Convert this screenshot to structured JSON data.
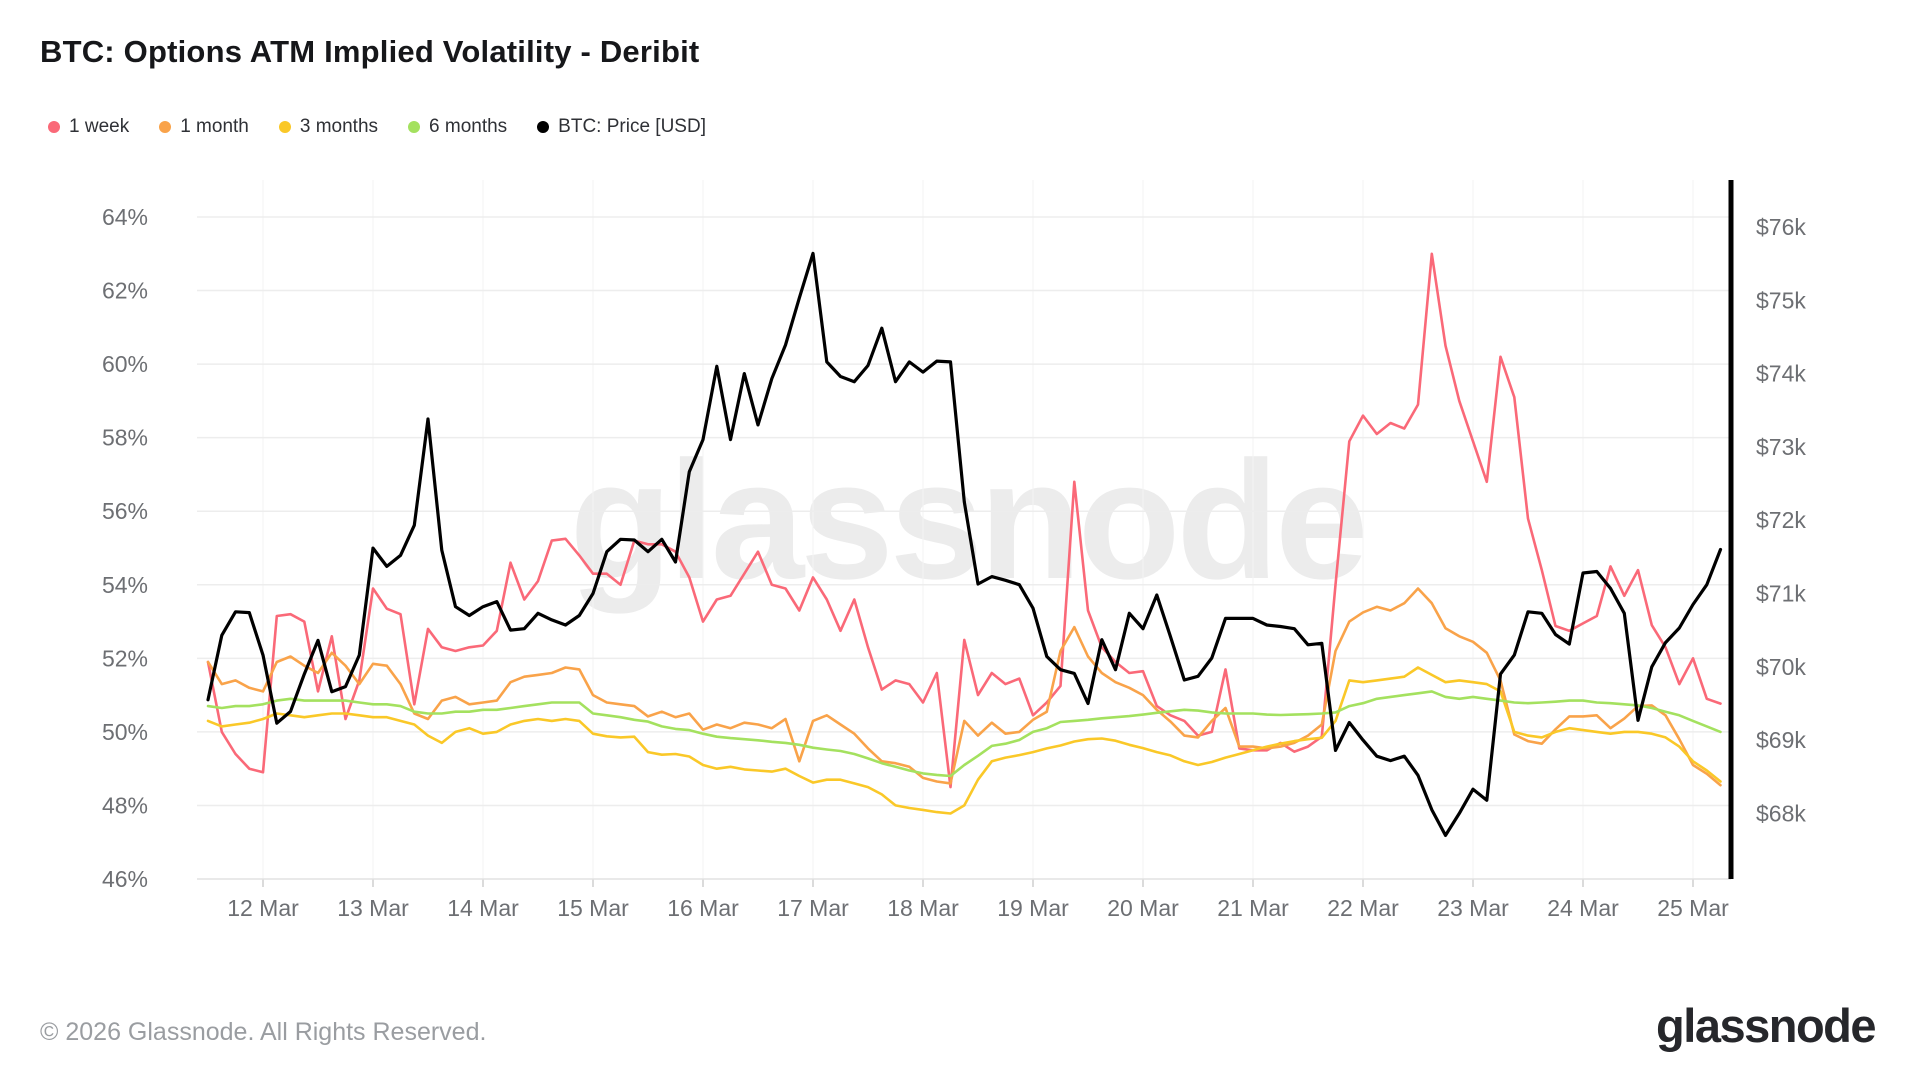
{
  "header": {
    "title": "BTC: Options ATM Implied Volatility - Deribit"
  },
  "legend": [
    {
      "label": "1 week",
      "color": "#fa6978"
    },
    {
      "label": "1 month",
      "color": "#f9a34a"
    },
    {
      "label": "3 months",
      "color": "#fac828"
    },
    {
      "label": "6 months",
      "color": "#a4e15f"
    },
    {
      "label": "BTC: Price [USD]",
      "color": "#000000"
    }
  ],
  "watermark": "glassnode",
  "footer": {
    "copyright": "© 2026 Glassnode. All Rights Reserved.",
    "logo_text": "glassnode"
  },
  "chart_data": {
    "type": "line",
    "title": "BTC: Options ATM Implied Volatility - Deribit",
    "x_unit": "days relative to 12 Mar 00:00",
    "x_start": -0.5,
    "x_step": 0.125,
    "x_ticks": {
      "positions": [
        0,
        1,
        2,
        3,
        4,
        5,
        6,
        7,
        8,
        9,
        10,
        11,
        12,
        13
      ],
      "labels": [
        "12 Mar",
        "13 Mar",
        "14 Mar",
        "15 Mar",
        "16 Mar",
        "17 Mar",
        "18 Mar",
        "19 Mar",
        "20 Mar",
        "21 Mar",
        "22 Mar",
        "23 Mar",
        "24 Mar",
        "25 Mar"
      ]
    },
    "left_axis": {
      "unit": "%",
      "tick_values": [
        64,
        62,
        60,
        58,
        56,
        54,
        52,
        50,
        48,
        46
      ],
      "tick_labels": [
        "64%",
        "62%",
        "60%",
        "58%",
        "56%",
        "54%",
        "52%",
        "50%",
        "48%",
        "46%"
      ],
      "range": [
        46,
        64
      ]
    },
    "right_axis": {
      "unit": "USD",
      "tick_values": [
        76,
        75,
        74,
        73,
        72,
        71,
        70,
        69,
        68
      ],
      "tick_labels": [
        "$76k",
        "$75k",
        "$74k",
        "$73k",
        "$72k",
        "$71k",
        "$70k",
        "$69k",
        "$68k"
      ],
      "range": [
        68,
        76
      ]
    },
    "grid": true,
    "legend_position": "top-left",
    "series": [
      {
        "name": "1 week",
        "axis": "left",
        "color": "#fa6978",
        "values": [
          51.9,
          50.0,
          49.4,
          49.0,
          48.9,
          53.15,
          53.2,
          53.0,
          51.1,
          52.6,
          50.35,
          51.4,
          53.9,
          53.35,
          53.2,
          50.75,
          52.8,
          52.3,
          52.2,
          52.3,
          52.35,
          52.75,
          54.6,
          53.6,
          54.1,
          55.2,
          55.25,
          54.8,
          54.3,
          54.3,
          54.0,
          55.2,
          55.1,
          55.1,
          54.9,
          54.2,
          53.0,
          53.6,
          53.7,
          54.3,
          54.9,
          54.0,
          53.9,
          53.3,
          54.2,
          53.6,
          52.75,
          53.6,
          52.3,
          51.15,
          51.4,
          51.3,
          50.8,
          51.6,
          48.5,
          52.5,
          51.0,
          51.6,
          51.3,
          51.45,
          50.45,
          50.8,
          51.25,
          56.8,
          53.3,
          52.3,
          51.9,
          51.6,
          51.65,
          50.7,
          50.45,
          50.3,
          49.9,
          50.0,
          51.7,
          49.55,
          49.5,
          49.5,
          49.7,
          49.46,
          49.6,
          49.87,
          54.0,
          57.9,
          58.6,
          58.1,
          58.4,
          58.25,
          58.9,
          63.0,
          60.5,
          59.0,
          57.9,
          56.8,
          60.2,
          59.1,
          55.8,
          54.4,
          52.88,
          52.75,
          52.95,
          53.15,
          54.5,
          53.7,
          54.4,
          52.9,
          52.3,
          51.3,
          52.0,
          50.9,
          50.77
        ]
      },
      {
        "name": "1 month",
        "axis": "left",
        "color": "#f9a34a",
        "values": [
          51.9,
          51.3,
          51.4,
          51.2,
          51.1,
          51.9,
          52.05,
          51.8,
          51.6,
          52.15,
          51.8,
          51.3,
          51.85,
          51.8,
          51.3,
          50.5,
          50.35,
          50.85,
          50.95,
          50.75,
          50.8,
          50.85,
          51.35,
          51.5,
          51.55,
          51.6,
          51.75,
          51.7,
          51.0,
          50.8,
          50.75,
          50.7,
          50.42,
          50.55,
          50.4,
          50.5,
          50.06,
          50.2,
          50.1,
          50.25,
          50.2,
          50.1,
          50.35,
          49.2,
          50.3,
          50.45,
          50.2,
          49.95,
          49.55,
          49.2,
          49.15,
          49.05,
          48.75,
          48.65,
          48.6,
          50.3,
          49.9,
          50.25,
          49.95,
          50.0,
          50.33,
          50.55,
          52.2,
          52.85,
          52.05,
          51.6,
          51.35,
          51.2,
          51.0,
          50.6,
          50.28,
          49.9,
          49.85,
          50.3,
          50.65,
          49.6,
          49.6,
          49.55,
          49.6,
          49.7,
          49.9,
          50.2,
          52.2,
          53.0,
          53.25,
          53.4,
          53.3,
          53.5,
          53.9,
          53.5,
          52.82,
          52.6,
          52.45,
          52.15,
          51.4,
          49.93,
          49.75,
          49.68,
          50.07,
          50.42,
          50.42,
          50.45,
          50.1,
          50.36,
          50.7,
          50.72,
          50.45,
          49.8,
          49.1,
          48.86,
          48.55
        ]
      },
      {
        "name": "3 months",
        "axis": "left",
        "color": "#fac828",
        "values": [
          50.3,
          50.15,
          50.2,
          50.25,
          50.35,
          50.5,
          50.45,
          50.4,
          50.45,
          50.5,
          50.5,
          50.45,
          50.4,
          50.4,
          50.3,
          50.2,
          49.9,
          49.7,
          50.0,
          50.1,
          49.95,
          50.0,
          50.2,
          50.3,
          50.35,
          50.3,
          50.35,
          50.3,
          49.95,
          49.88,
          49.85,
          49.87,
          49.45,
          49.38,
          49.4,
          49.33,
          49.1,
          49.0,
          49.05,
          48.98,
          48.95,
          48.92,
          49.0,
          48.8,
          48.62,
          48.7,
          48.7,
          48.6,
          48.5,
          48.3,
          48.0,
          47.93,
          47.88,
          47.82,
          47.78,
          48.0,
          48.7,
          49.2,
          49.3,
          49.37,
          49.45,
          49.55,
          49.63,
          49.74,
          49.8,
          49.82,
          49.76,
          49.65,
          49.56,
          49.45,
          49.36,
          49.2,
          49.1,
          49.18,
          49.3,
          49.4,
          49.5,
          49.6,
          49.68,
          49.75,
          49.8,
          49.84,
          50.3,
          51.4,
          51.35,
          51.4,
          51.45,
          51.5,
          51.75,
          51.55,
          51.35,
          51.4,
          51.35,
          51.3,
          51.1,
          50.0,
          49.9,
          49.85,
          50.0,
          50.1,
          50.05,
          50.0,
          49.95,
          50.0,
          50.0,
          49.95,
          49.85,
          49.6,
          49.2,
          48.95,
          48.65
        ]
      },
      {
        "name": "6 months",
        "axis": "left",
        "color": "#a4e15f",
        "values": [
          50.7,
          50.65,
          50.7,
          50.7,
          50.75,
          50.85,
          50.9,
          50.85,
          50.85,
          50.85,
          50.85,
          50.8,
          50.75,
          50.75,
          50.7,
          50.55,
          50.5,
          50.5,
          50.55,
          50.55,
          50.6,
          50.6,
          50.65,
          50.7,
          50.75,
          50.8,
          50.8,
          50.8,
          50.5,
          50.45,
          50.4,
          50.33,
          50.28,
          50.15,
          50.08,
          50.05,
          49.95,
          49.87,
          49.83,
          49.8,
          49.77,
          49.73,
          49.7,
          49.65,
          49.57,
          49.52,
          49.48,
          49.4,
          49.28,
          49.15,
          49.05,
          48.95,
          48.87,
          48.83,
          48.8,
          49.1,
          49.35,
          49.62,
          49.68,
          49.78,
          50.0,
          50.1,
          50.27,
          50.3,
          50.33,
          50.37,
          50.4,
          50.43,
          50.47,
          50.52,
          50.56,
          50.6,
          50.58,
          50.53,
          50.5,
          50.5,
          50.5,
          50.47,
          50.46,
          50.47,
          50.48,
          50.5,
          50.53,
          50.7,
          50.78,
          50.9,
          50.95,
          51.0,
          51.05,
          51.1,
          50.95,
          50.9,
          50.95,
          50.9,
          50.85,
          50.8,
          50.78,
          50.8,
          50.82,
          50.85,
          50.85,
          50.8,
          50.78,
          50.75,
          50.72,
          50.65,
          50.55,
          50.45,
          50.3,
          50.15,
          50.0
        ]
      },
      {
        "name": "BTC: Price [USD]",
        "axis": "right",
        "color": "#000000",
        "values": [
          69.55,
          70.43,
          70.75,
          70.74,
          70.16,
          69.23,
          69.39,
          69.9,
          70.36,
          69.66,
          69.73,
          70.16,
          71.62,
          71.37,
          71.52,
          71.93,
          73.38,
          71.59,
          70.82,
          70.7,
          70.82,
          70.89,
          70.5,
          70.52,
          70.73,
          70.64,
          70.57,
          70.7,
          71.0,
          71.57,
          71.74,
          71.73,
          71.57,
          71.74,
          71.43,
          72.66,
          73.1,
          74.1,
          73.1,
          74.0,
          73.3,
          73.93,
          74.39,
          75.03,
          75.64,
          74.16,
          73.96,
          73.89,
          74.11,
          74.62,
          73.89,
          74.16,
          74.02,
          74.17,
          74.16,
          72.25,
          71.13,
          71.23,
          71.18,
          71.12,
          70.8,
          70.14,
          69.96,
          69.91,
          69.5,
          70.37,
          69.96,
          70.73,
          70.52,
          70.98,
          70.41,
          69.82,
          69.87,
          70.12,
          70.66,
          70.66,
          70.66,
          70.57,
          70.55,
          70.52,
          70.3,
          70.32,
          68.86,
          69.24,
          69.0,
          68.78,
          68.72,
          68.78,
          68.52,
          68.05,
          67.7,
          68.0,
          68.33,
          68.18,
          69.9,
          70.16,
          70.75,
          70.73,
          70.44,
          70.31,
          71.28,
          71.3,
          71.07,
          70.73,
          69.27,
          70.0,
          70.33,
          70.53,
          70.85,
          71.12,
          71.6
        ]
      }
    ]
  }
}
